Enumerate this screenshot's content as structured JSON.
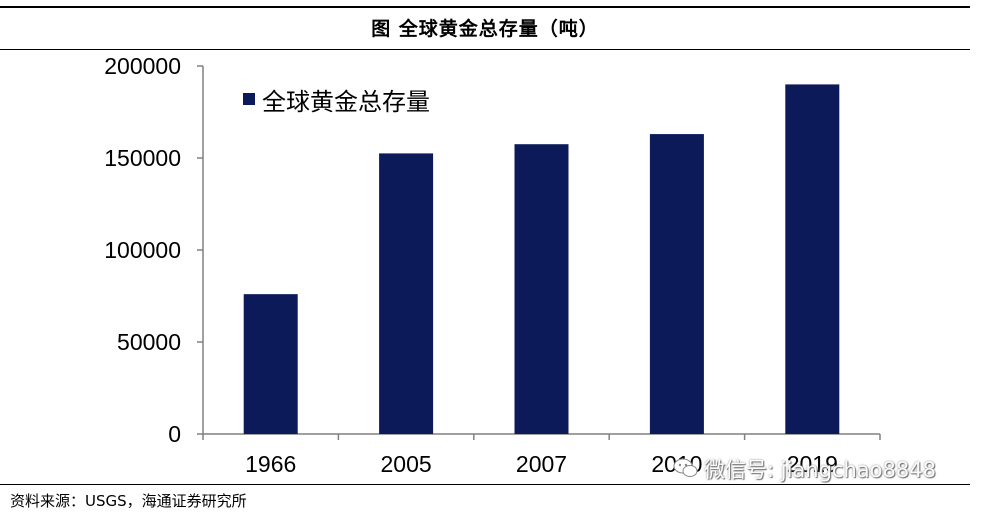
{
  "header": {
    "title": "图  全球黄金总存量（吨）"
  },
  "chart_data": {
    "type": "bar",
    "title": "图  全球黄金总存量（吨）",
    "categories": [
      "1966",
      "2005",
      "2007",
      "2010",
      "2019"
    ],
    "series": [
      {
        "name": "全球黄金总存量",
        "values": [
          76000,
          152500,
          157500,
          163000,
          190000
        ]
      }
    ],
    "xlabel": "",
    "ylabel": "",
    "ylim": [
      0,
      200000
    ],
    "yticks": [
      "0",
      "50000",
      "100000",
      "150000",
      "200000"
    ],
    "legend_position": "top-left",
    "grid": false,
    "colors": {
      "bar": "#0C1A59",
      "axis": "#808080"
    }
  },
  "footer": {
    "source": "资料来源：USGS，海通证券研究所"
  },
  "watermark": {
    "text": "微信号: jiangchao8848",
    "icon": "wechat-icon"
  }
}
